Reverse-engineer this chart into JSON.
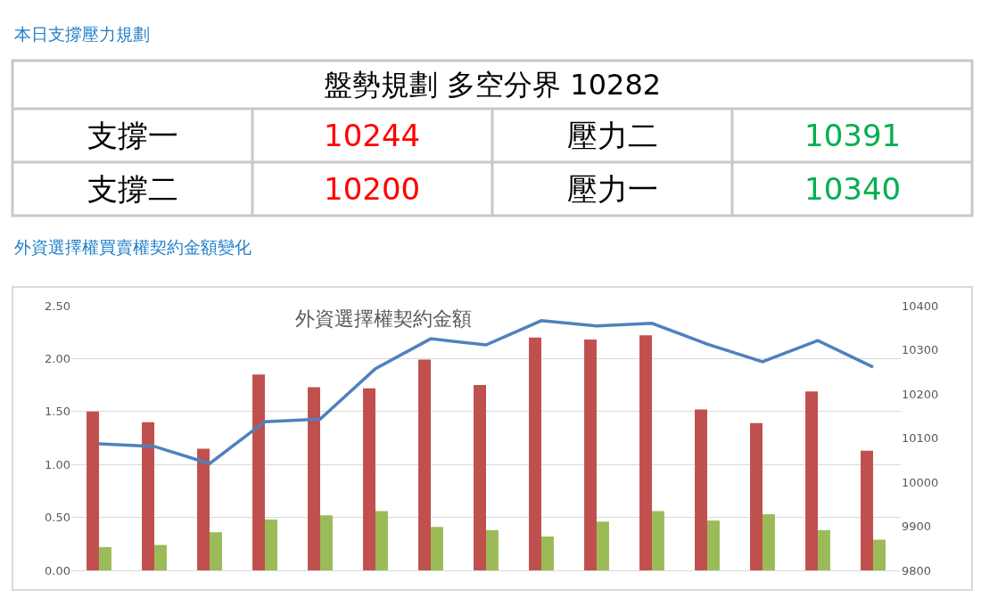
{
  "chart_data": [
    {
      "type": "other",
      "title": "本日支撐壓力規劃",
      "annotations": [
        "盤勢規劃 多空分界 10282",
        "支撐一",
        "10244",
        "壓力二",
        "10391",
        "支撐二",
        "10200",
        "壓力一",
        "10340"
      ],
      "colors": [
        "#000000",
        "#000000",
        "#ff0000",
        "#000000",
        "#00b050",
        "#000000",
        "#ff0000",
        "#000000",
        "#00b050"
      ]
    },
    {
      "type": "bar",
      "title": "外資選擇權買賣權契約金額變化",
      "subtitle": "外資選擇權契約金額",
      "categories": [
        null,
        null,
        null,
        null,
        null,
        null,
        null,
        null,
        null,
        null,
        null,
        null,
        null,
        null,
        null
      ],
      "series": [
        {
          "color": "#c0504d",
          "values": [
            1.5,
            1.4,
            1.15,
            1.85,
            1.73,
            1.72,
            1.99,
            1.75,
            2.2,
            2.18,
            2.22,
            1.52,
            1.39,
            1.69,
            1.13
          ]
        },
        {
          "color": "#9bbb59",
          "values": [
            0.22,
            0.24,
            0.36,
            0.48,
            0.52,
            0.56,
            0.41,
            0.38,
            0.32,
            0.46,
            0.56,
            0.47,
            0.53,
            0.38,
            0.29
          ]
        },
        {
          "type": "line",
          "axis": "y2",
          "color": "#4f81bd",
          "values": [
            10087,
            10081,
            10042,
            10137,
            10143,
            10257,
            10325,
            10311,
            10366,
            10354,
            10360,
            10313,
            10273,
            10321,
            10261
          ]
        }
      ],
      "ylim": [
        0,
        2.5
      ],
      "yticks": [
        {
          "value": 0,
          "label": "0.00"
        },
        {
          "value": 0.5,
          "label": "0.50"
        },
        {
          "value": 1,
          "label": "1.00"
        },
        {
          "value": 1.5,
          "label": "1.50"
        },
        {
          "value": 2,
          "label": "2.00"
        },
        {
          "value": 2.5,
          "label": "2.50"
        }
      ],
      "y2lim": [
        9800,
        10400
      ],
      "y2ticks": [
        9800,
        9900,
        10000,
        10100,
        10200,
        10300,
        10400
      ],
      "grid": "y",
      "marker": "none"
    }
  ]
}
